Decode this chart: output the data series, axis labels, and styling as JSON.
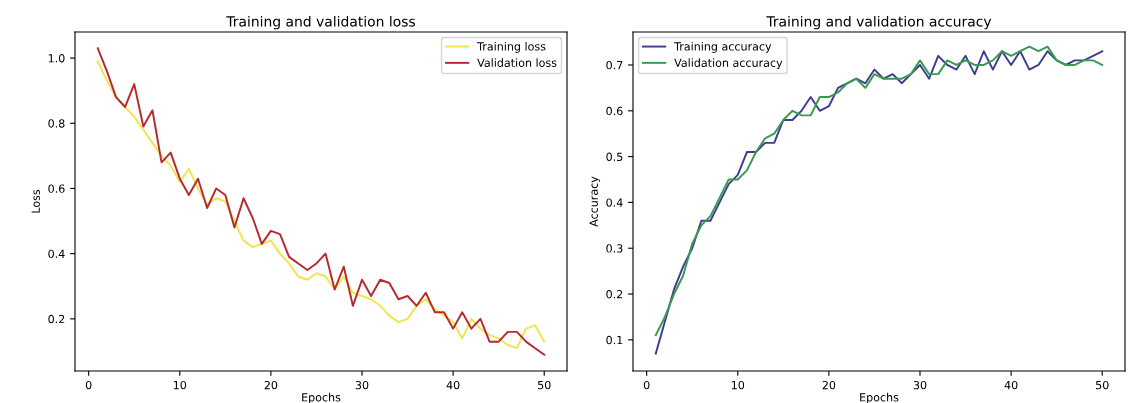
{
  "chart_data": [
    {
      "type": "line",
      "title": "Training and validation loss",
      "xlabel": "Epochs",
      "ylabel": "Loss",
      "x": [
        1,
        2,
        3,
        4,
        5,
        6,
        7,
        8,
        9,
        10,
        11,
        12,
        13,
        14,
        15,
        16,
        17,
        18,
        19,
        20,
        21,
        22,
        23,
        24,
        25,
        26,
        27,
        28,
        29,
        30,
        31,
        32,
        33,
        34,
        35,
        36,
        37,
        38,
        39,
        40,
        41,
        42,
        43,
        44,
        45,
        46,
        47,
        48,
        49,
        50
      ],
      "series": [
        {
          "name": "Training loss",
          "color": "#f2e34f",
          "values": [
            0.99,
            0.93,
            0.88,
            0.85,
            0.82,
            0.78,
            0.74,
            0.7,
            0.67,
            0.62,
            0.66,
            0.6,
            0.55,
            0.57,
            0.56,
            0.5,
            0.44,
            0.42,
            0.43,
            0.44,
            0.4,
            0.37,
            0.33,
            0.32,
            0.34,
            0.33,
            0.29,
            0.33,
            0.28,
            0.27,
            0.26,
            0.24,
            0.21,
            0.19,
            0.2,
            0.24,
            0.26,
            0.23,
            0.21,
            0.19,
            0.14,
            0.2,
            0.17,
            0.15,
            0.14,
            0.12,
            0.11,
            0.17,
            0.18,
            0.13
          ]
        },
        {
          "name": "Validation loss",
          "color": "#b52a2e",
          "values": [
            1.03,
            0.96,
            0.88,
            0.85,
            0.92,
            0.79,
            0.84,
            0.68,
            0.71,
            0.63,
            0.58,
            0.63,
            0.54,
            0.6,
            0.58,
            0.48,
            0.57,
            0.51,
            0.43,
            0.47,
            0.46,
            0.39,
            0.37,
            0.35,
            0.37,
            0.4,
            0.29,
            0.36,
            0.24,
            0.32,
            0.27,
            0.32,
            0.31,
            0.26,
            0.27,
            0.24,
            0.28,
            0.22,
            0.22,
            0.17,
            0.22,
            0.17,
            0.2,
            0.13,
            0.13,
            0.16,
            0.16,
            0.13,
            0.11,
            0.09
          ]
        }
      ],
      "xlim": [
        -1.5,
        52.5
      ],
      "xticks": [
        0,
        10,
        20,
        30,
        40,
        50
      ],
      "ylim": [
        0.04,
        1.08
      ],
      "yticks": [
        0.2,
        0.4,
        0.6,
        0.8,
        {
          "value": 1.0,
          "label": "1.0"
        }
      ],
      "legend": "top right",
      "grid": false
    },
    {
      "type": "line",
      "title": "Training and validation accuracy",
      "xlabel": "Epochs",
      "ylabel": "Accuracy",
      "x": [
        1,
        2,
        3,
        4,
        5,
        6,
        7,
        8,
        9,
        10,
        11,
        12,
        13,
        14,
        15,
        16,
        17,
        18,
        19,
        20,
        21,
        22,
        23,
        24,
        25,
        26,
        27,
        28,
        29,
        30,
        31,
        32,
        33,
        34,
        35,
        36,
        37,
        38,
        39,
        40,
        41,
        42,
        43,
        44,
        45,
        46,
        47,
        48,
        49,
        50
      ],
      "series": [
        {
          "name": "Training accuracy",
          "color": "#3c3f8f",
          "values": [
            0.07,
            0.14,
            0.21,
            0.26,
            0.3,
            0.36,
            0.36,
            0.4,
            0.44,
            0.46,
            0.51,
            0.51,
            0.53,
            0.53,
            0.58,
            0.58,
            0.6,
            0.63,
            0.6,
            0.61,
            0.65,
            0.66,
            0.67,
            0.66,
            0.69,
            0.67,
            0.68,
            0.66,
            0.68,
            0.7,
            0.67,
            0.72,
            0.7,
            0.69,
            0.72,
            0.68,
            0.73,
            0.69,
            0.73,
            0.7,
            0.73,
            0.69,
            0.7,
            0.73,
            0.71,
            0.7,
            0.71,
            0.71,
            0.72,
            0.73
          ]
        },
        {
          "name": "Validation accuracy",
          "color": "#3a9a50",
          "values": [
            0.11,
            0.15,
            0.2,
            0.24,
            0.31,
            0.35,
            0.37,
            0.41,
            0.45,
            0.45,
            0.47,
            0.51,
            0.54,
            0.55,
            0.58,
            0.6,
            0.59,
            0.59,
            0.63,
            0.63,
            0.64,
            0.66,
            0.67,
            0.65,
            0.68,
            0.67,
            0.67,
            0.67,
            0.68,
            0.71,
            0.68,
            0.68,
            0.71,
            0.7,
            0.71,
            0.7,
            0.7,
            0.71,
            0.73,
            0.72,
            0.73,
            0.74,
            0.73,
            0.74,
            0.71,
            0.7,
            0.7,
            0.71,
            0.71,
            0.7
          ]
        }
      ],
      "xlim": [
        -1.5,
        52.5
      ],
      "xticks": [
        0,
        10,
        20,
        30,
        40,
        50
      ],
      "ylim": [
        0.032,
        0.772
      ],
      "yticks": [
        0.1,
        0.2,
        0.3,
        0.4,
        0.5,
        0.6,
        0.7
      ],
      "legend": "top left",
      "grid": false
    }
  ]
}
